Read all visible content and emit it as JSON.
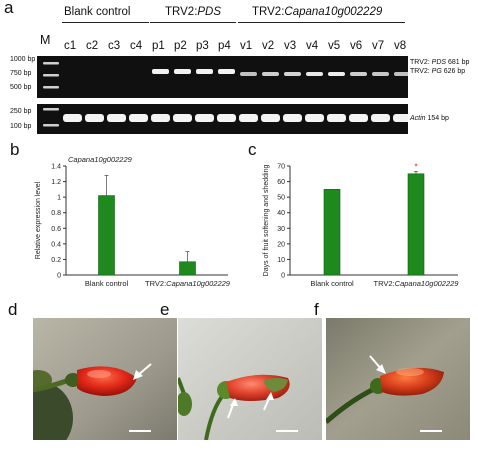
{
  "panel_a": {
    "letter": "a",
    "marker_label": "M",
    "groups": [
      {
        "name": "Blank control",
        "lanes": [
          "c1",
          "c2",
          "c3",
          "c4"
        ]
      },
      {
        "name_prefix": "TRV2:",
        "name_italic": "PDS",
        "lanes": [
          "p1",
          "p2",
          "p3",
          "p4"
        ]
      },
      {
        "name_prefix": "TRV2:",
        "name_italic": "Capana10g002229",
        "lanes": [
          "v1",
          "v2",
          "v3",
          "v4",
          "v5",
          "v6",
          "v7",
          "v8"
        ]
      }
    ],
    "ladder_top": [
      "1000 bp",
      "750 bp",
      "500 bp"
    ],
    "ladder_bottom": [
      "250 bp",
      "100 bp"
    ],
    "right_label_1_prefix": "TRV2: ",
    "right_label_1_gene": "PDS",
    "right_label_1_size": " 681 bp",
    "right_label_2_prefix": "TRV2: ",
    "right_label_2_gene": "PG",
    "right_label_2_size": " 626 bp",
    "actin_gene": "Actin",
    "actin_size": " 154 bp"
  },
  "panel_b": {
    "letter": "b",
    "chart_data": {
      "type": "bar",
      "title": "Capana10g002229",
      "categories_plain": [
        "Blank control",
        "TRV2:"
      ],
      "category_2_italic": "Capana10g002229",
      "values": [
        1.02,
        0.17
      ],
      "errors": [
        0.26,
        0.13
      ],
      "ylabel": "Relative expression level",
      "ylim": [
        0,
        1.4
      ],
      "yticks": [
        "0",
        "0.2",
        "0.4",
        "0.6",
        "0.8",
        "1",
        "1.2",
        "1.4"
      ],
      "bar_color": "#1e8a1e"
    }
  },
  "panel_c": {
    "letter": "c",
    "chart_data": {
      "type": "bar",
      "categories_plain": [
        "Blank control",
        "TRV2:"
      ],
      "category_2_italic": "Capana10g002229",
      "values": [
        55,
        65
      ],
      "errors": [
        0,
        1.5
      ],
      "ylabel": "Days of fruit softening and shedding",
      "ylim": [
        0,
        70
      ],
      "yticks": [
        "0",
        "10",
        "20",
        "30",
        "40",
        "50",
        "60",
        "70"
      ],
      "significance": "*",
      "bar_color": "#1e8a1e"
    }
  },
  "photos": [
    {
      "letter": "d"
    },
    {
      "letter": "e"
    },
    {
      "letter": "f"
    }
  ]
}
